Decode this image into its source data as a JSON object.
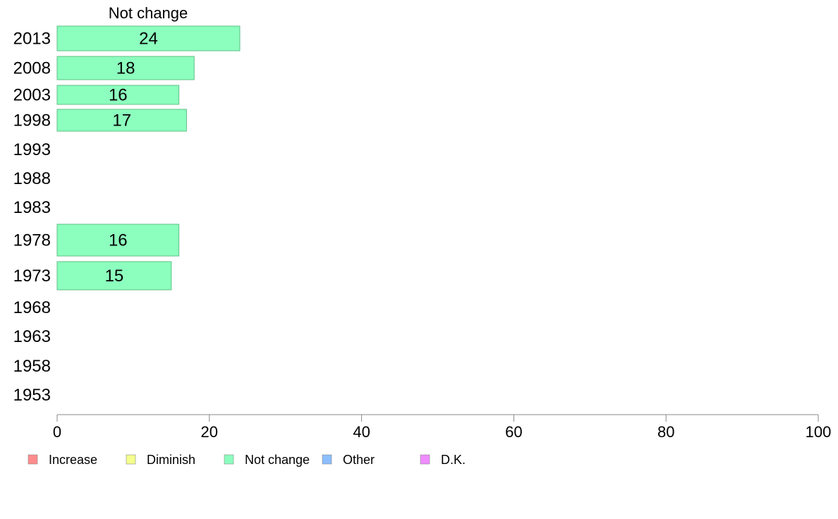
{
  "chart_data": {
    "type": "bar",
    "orientation": "horizontal",
    "column_title": "Not change",
    "categories": [
      "2013",
      "2008",
      "2003",
      "1998",
      "1993",
      "1988",
      "1983",
      "1978",
      "1973",
      "1968",
      "1963",
      "1958",
      "1953"
    ],
    "series": [
      {
        "name": "Not change",
        "values": [
          24,
          18,
          16,
          17,
          null,
          null,
          null,
          16,
          15,
          null,
          null,
          null,
          null
        ]
      }
    ],
    "xlim": [
      0,
      100
    ],
    "xticks": [
      "0",
      "20",
      "40",
      "60",
      "80",
      "100"
    ],
    "legend": {
      "placement": "bottom",
      "items": [
        {
          "label": "Increase",
          "color": "#ff8c8c"
        },
        {
          "label": "Diminish",
          "color": "#f5ff8c"
        },
        {
          "label": "Not change",
          "color": "#8cffbe"
        },
        {
          "label": "Other",
          "color": "#8cbeff"
        },
        {
          "label": "D.K.",
          "color": "#f08cff"
        }
      ]
    },
    "bar_color": "#8cffbe",
    "bar_stroke": "#5fbf86",
    "grid": false
  }
}
